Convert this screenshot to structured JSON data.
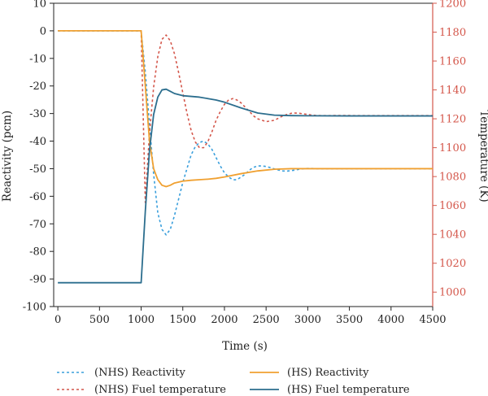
{
  "chart_data": {
    "type": "line",
    "xlabel": "Time (s)",
    "ylabel_left": "Reactivity (pcm)",
    "ylabel_right": "Temperature (K)",
    "xlim": [
      -50,
      4500
    ],
    "ylim_left": [
      -100,
      10
    ],
    "ylim_right": [
      990,
      1200
    ],
    "xticks": [
      0,
      500,
      1000,
      1500,
      2000,
      2500,
      3000,
      3500,
      4000,
      4500
    ],
    "yticks_left": [
      10,
      0,
      -10,
      -20,
      -30,
      -40,
      -50,
      -60,
      -70,
      -80,
      -90,
      -100
    ],
    "yticks_right": [
      1200,
      1180,
      1160,
      1140,
      1120,
      1100,
      1080,
      1060,
      1040,
      1020,
      1000
    ],
    "grid": false,
    "legend_position": "bottom",
    "colors": {
      "blue": "#2c6e8e",
      "orange": "#f0a030",
      "red": "#d4574b",
      "lightblue": "#3a9fdc"
    },
    "series": [
      {
        "name": "(NHS) Reactivity",
        "axis": "left",
        "style": "dotted",
        "color": "#3a9fdc",
        "x": [
          0,
          1000,
          1050,
          1100,
          1150,
          1200,
          1250,
          1300,
          1350,
          1400,
          1450,
          1500,
          1550,
          1600,
          1650,
          1700,
          1750,
          1800,
          1850,
          1900,
          1950,
          2000,
          2050,
          2100,
          2150,
          2200,
          2250,
          2300,
          2350,
          2400,
          2450,
          2500,
          2550,
          2600,
          2650,
          2700,
          2750,
          2800,
          2850,
          2900,
          2950,
          3000,
          3050,
          3100,
          3200,
          3400,
          3600,
          4000,
          4500
        ],
        "y": [
          0,
          0,
          -15,
          -34,
          -52,
          -66,
          -72,
          -74,
          -72,
          -67,
          -61,
          -55,
          -50,
          -45,
          -42,
          -40.5,
          -40,
          -41,
          -43,
          -46,
          -49,
          -51.5,
          -53,
          -54,
          -54,
          -53,
          -52,
          -50.5,
          -49.5,
          -49,
          -49,
          -49.2,
          -49.6,
          -50.1,
          -50.5,
          -50.8,
          -50.9,
          -50.7,
          -50.5,
          -50.2,
          -50,
          -49.9,
          -49.9,
          -50,
          -50,
          -50,
          -50,
          -50,
          -50
        ]
      },
      {
        "name": "(NHS) Fuel temperature",
        "axis": "right",
        "style": "dotted",
        "color": "#d4574b",
        "x": [
          0,
          1000,
          1050,
          1100,
          1150,
          1200,
          1250,
          1300,
          1350,
          1400,
          1450,
          1500,
          1550,
          1600,
          1650,
          1700,
          1750,
          1800,
          1850,
          1900,
          1950,
          2000,
          2050,
          2100,
          2150,
          2200,
          2250,
          2300,
          2350,
          2400,
          2450,
          2500,
          2550,
          2600,
          2650,
          2700,
          2750,
          2800,
          2850,
          2900,
          2950,
          3000,
          3050,
          3100,
          3200,
          3400,
          3600,
          4000,
          4500
        ],
        "y": [
          1181,
          1181,
          1062,
          1110,
          1142,
          1163,
          1175,
          1178,
          1174,
          1165,
          1152,
          1138,
          1124,
          1112,
          1104,
          1100,
          1100,
          1104,
          1111,
          1119,
          1125,
          1130,
          1133,
          1134,
          1133,
          1131,
          1128,
          1125,
          1122,
          1120,
          1119,
          1118,
          1118.5,
          1119,
          1120.5,
          1122,
          1123,
          1123.8,
          1124,
          1123.8,
          1123.4,
          1123,
          1122.6,
          1122.3,
          1122.2,
          1122.3,
          1122.2,
          1122.2,
          1122.2
        ]
      },
      {
        "name": "(HS) Reactivity",
        "axis": "left",
        "style": "solid",
        "color": "#f0a030",
        "x": [
          0,
          1000,
          1050,
          1100,
          1150,
          1200,
          1250,
          1300,
          1350,
          1400,
          1500,
          1600,
          1700,
          1800,
          1900,
          2000,
          2200,
          2400,
          2600,
          2800,
          3000,
          3500,
          4000,
          4500
        ],
        "y": [
          0,
          0,
          -20,
          -40,
          -50,
          -54,
          -56,
          -56.5,
          -56,
          -55.2,
          -54.5,
          -54.2,
          -54,
          -53.8,
          -53.5,
          -53,
          -51.8,
          -50.8,
          -50.2,
          -50,
          -50,
          -50,
          -50,
          -50
        ]
      },
      {
        "name": "(HS) Fuel temperature",
        "axis": "right",
        "style": "solid",
        "color": "#2c6e8e",
        "x": [
          0,
          1000,
          1050,
          1100,
          1150,
          1200,
          1250,
          1300,
          1350,
          1400,
          1500,
          1600,
          1700,
          1800,
          1900,
          2000,
          2200,
          2400,
          2600,
          2800,
          3000,
          3500,
          4000,
          4500
        ],
        "y": [
          1006.5,
          1006.5,
          1056,
          1098,
          1123,
          1135,
          1140,
          1140.5,
          1139,
          1137.5,
          1136,
          1135.5,
          1135,
          1134,
          1133,
          1131.5,
          1127.5,
          1124,
          1122.5,
          1122.2,
          1122.1,
          1122,
          1122,
          1122
        ]
      }
    ]
  }
}
